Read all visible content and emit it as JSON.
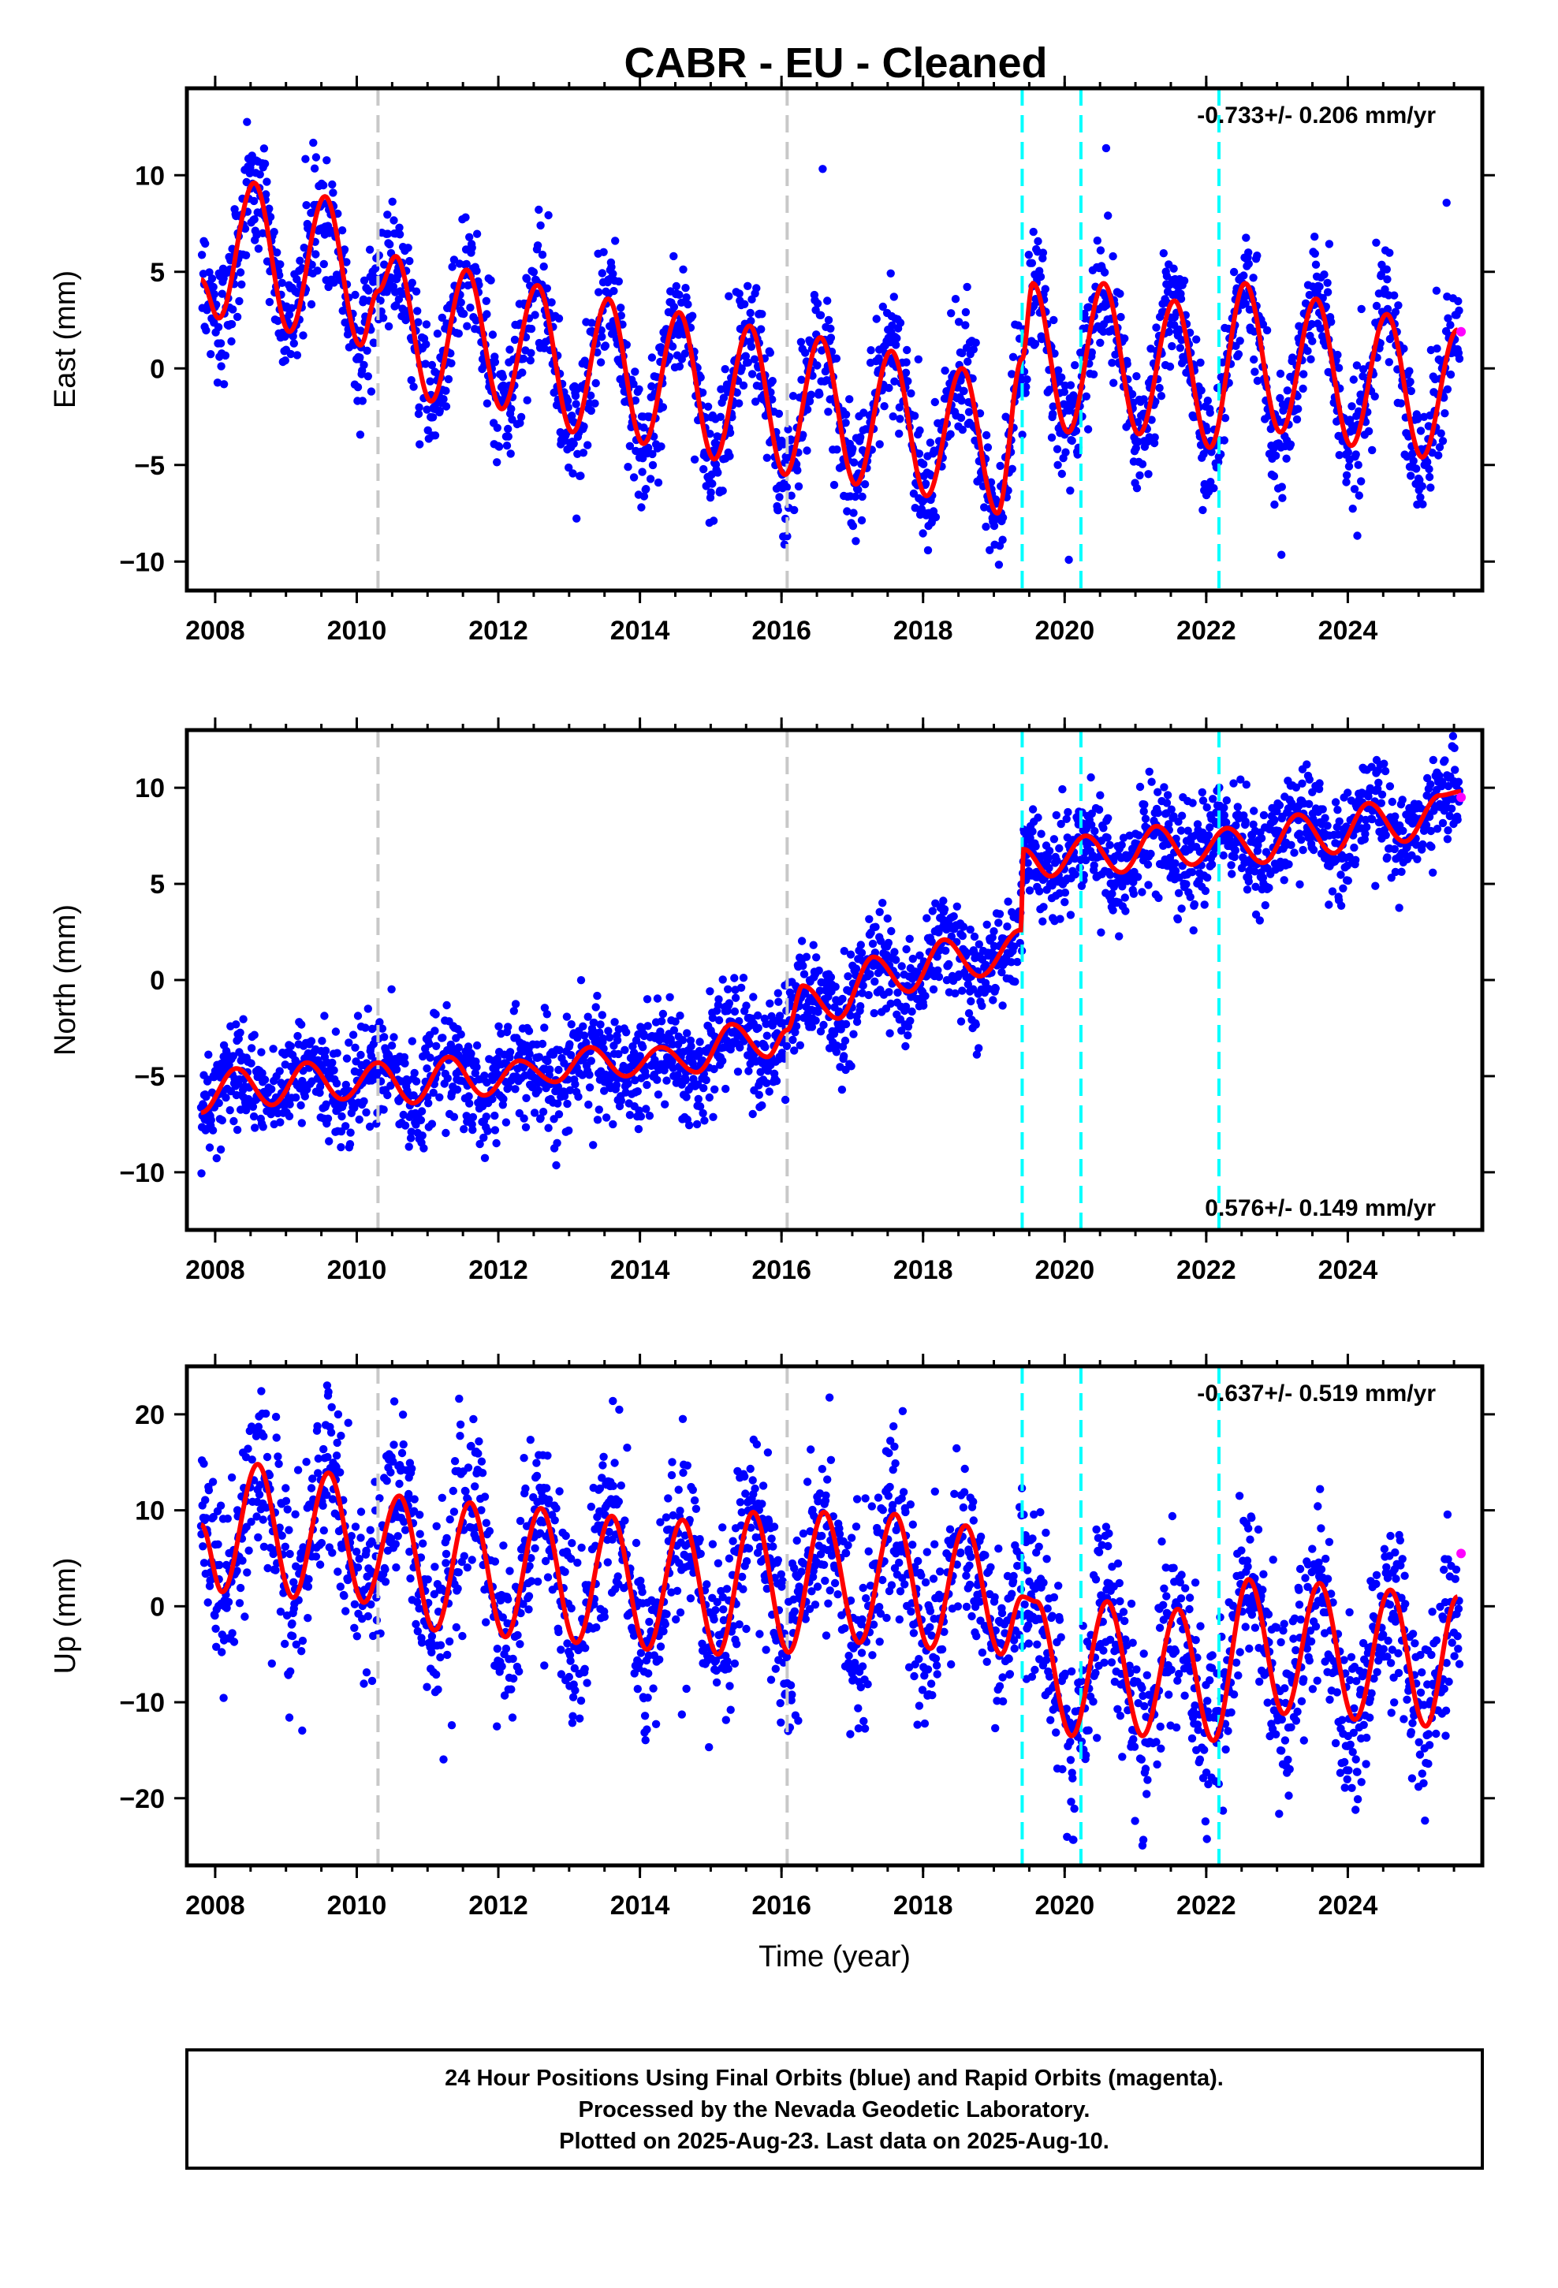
{
  "title": "CABR  - EU - Cleaned",
  "footer": {
    "line1": "24 Hour Positions Using Final Orbits (blue) and Rapid Orbits (magenta).",
    "line2": "Processed by the Nevada Geodetic Laboratory.",
    "line3": "Plotted on 2025-Aug-23. Last data on 2025-Aug-10."
  },
  "colors": {
    "final_orbits": "#0000ff",
    "rapid_orbits": "#ff00ff",
    "model_fit": "#ff0000",
    "equipment_change": "#c8c8c8",
    "earthquake": "#00ffff"
  },
  "chart_data": [
    {
      "type": "scatter",
      "panel": "east",
      "ylabel": "East (mm)",
      "xlabel": "",
      "xlim": [
        2007.6,
        2025.9
      ],
      "ylim": [
        -11.5,
        14.5
      ],
      "xticks": [
        2008,
        2010,
        2012,
        2014,
        2016,
        2018,
        2020,
        2022,
        2024
      ],
      "xtick_labels": [
        "2008",
        "2010",
        "2012",
        "2014",
        "2016",
        "2018",
        "2020",
        "2022",
        "2024"
      ],
      "yticks": [
        -10,
        -5,
        0,
        5,
        10
      ],
      "ytick_labels": [
        "−10",
        "−5",
        "0",
        "5",
        "10"
      ],
      "rate_text": "-0.733+/- 0.206 mm/yr",
      "rate_position": "top-right",
      "vlines_gray": [
        2010.3,
        2016.08
      ],
      "vlines_cyan": [
        2019.4,
        2020.23,
        2022.18
      ],
      "model_fit": {
        "description_points": "seasonal sinusoid on a slow trend",
        "x": [
          2007.8,
          2008.05,
          2008.55,
          2009.05,
          2009.55,
          2010.05,
          2010.3,
          2010.55,
          2011.05,
          2011.55,
          2012.05,
          2012.55,
          2013.05,
          2013.55,
          2014.05,
          2014.55,
          2015.05,
          2015.55,
          2016.05,
          2016.55,
          2017.05,
          2017.55,
          2018.05,
          2018.55,
          2019.05,
          2019.4,
          2019.55,
          2020.05,
          2020.55,
          2021.05,
          2021.55,
          2022.05,
          2022.55,
          2023.05,
          2023.55,
          2024.05,
          2024.55,
          2025.05,
          2025.55
        ],
        "y": [
          4.6,
          2.6,
          9.6,
          1.9,
          8.9,
          1.2,
          4.0,
          5.8,
          -1.7,
          5.1,
          -2.1,
          4.3,
          -3.3,
          3.6,
          -3.9,
          2.9,
          -4.7,
          2.2,
          -5.5,
          1.6,
          -6.0,
          0.9,
          -6.6,
          0.0,
          -7.5,
          0.5,
          4.4,
          -3.3,
          4.4,
          -3.4,
          3.5,
          -4.1,
          4.4,
          -3.3,
          3.6,
          -4.0,
          2.8,
          -4.6,
          2.0
        ]
      },
      "scatter_noise_mm": 1.6,
      "rapid_last": {
        "x": 2025.6,
        "y": 1.9
      }
    },
    {
      "type": "scatter",
      "panel": "north",
      "ylabel": "North (mm)",
      "xlabel": "",
      "xlim": [
        2007.6,
        2025.9
      ],
      "ylim": [
        -13,
        13
      ],
      "xticks": [
        2008,
        2010,
        2012,
        2014,
        2016,
        2018,
        2020,
        2022,
        2024
      ],
      "xtick_labels": [
        "2008",
        "2010",
        "2012",
        "2014",
        "2016",
        "2018",
        "2020",
        "2022",
        "2024"
      ],
      "yticks": [
        -10,
        -5,
        0,
        5,
        10
      ],
      "ytick_labels": [
        "−10",
        "−5",
        "0",
        "5",
        "10"
      ],
      "rate_text": "0.576+/- 0.149 mm/yr",
      "rate_position": "bottom-right",
      "vlines_gray": [
        2010.3,
        2016.08
      ],
      "vlines_cyan": [
        2019.4,
        2020.23,
        2022.18
      ],
      "model_fit": {
        "description_points": "piecewise trend with steps and seasonal signal",
        "x": [
          2007.8,
          2008.3,
          2008.8,
          2009.3,
          2009.8,
          2010.3,
          2010.8,
          2011.3,
          2011.8,
          2012.3,
          2012.8,
          2013.3,
          2013.8,
          2014.3,
          2014.8,
          2015.3,
          2015.8,
          2016.08,
          2016.3,
          2016.8,
          2017.3,
          2017.8,
          2018.3,
          2018.8,
          2019.38,
          2019.42,
          2019.8,
          2020.3,
          2020.8,
          2021.3,
          2021.8,
          2022.3,
          2022.8,
          2023.3,
          2023.8,
          2024.3,
          2024.8,
          2025.3,
          2025.6
        ],
        "y": [
          -6.9,
          -4.6,
          -6.5,
          -4.3,
          -6.2,
          -4.3,
          -6.4,
          -4.0,
          -6.0,
          -4.2,
          -5.3,
          -3.5,
          -5.0,
          -3.5,
          -4.8,
          -2.3,
          -4.0,
          -2.6,
          -0.3,
          -2.0,
          1.2,
          -0.6,
          2.1,
          0.2,
          2.6,
          6.8,
          5.4,
          7.5,
          5.6,
          8.0,
          6.0,
          7.9,
          6.1,
          8.6,
          6.6,
          9.2,
          7.2,
          9.6,
          9.8
        ]
      },
      "scatter_noise_mm": 1.3,
      "rapid_last": {
        "x": 2025.6,
        "y": 9.5
      }
    },
    {
      "type": "scatter",
      "panel": "up",
      "ylabel": "Up (mm)",
      "xlabel": "Time (year)",
      "xlim": [
        2007.6,
        2025.9
      ],
      "ylim": [
        -27,
        25
      ],
      "xticks": [
        2008,
        2010,
        2012,
        2014,
        2016,
        2018,
        2020,
        2022,
        2024
      ],
      "xtick_labels": [
        "2008",
        "2010",
        "2012",
        "2014",
        "2016",
        "2018",
        "2020",
        "2022",
        "2024"
      ],
      "yticks": [
        -20,
        -10,
        0,
        10,
        20
      ],
      "ytick_labels": [
        "−20",
        "−10",
        "0",
        "10",
        "20"
      ],
      "rate_text": "-0.637+/- 0.519 mm/yr",
      "rate_position": "top-right",
      "vlines_gray": [
        2010.3,
        2016.08
      ],
      "vlines_cyan": [
        2019.4,
        2020.23,
        2022.18
      ],
      "model_fit": {
        "description_points": "seasonal sinusoid with a negative offset after 2019",
        "x": [
          2007.8,
          2008.1,
          2008.6,
          2009.1,
          2009.6,
          2010.1,
          2010.6,
          2011.1,
          2011.6,
          2012.1,
          2012.6,
          2013.1,
          2013.6,
          2014.1,
          2014.6,
          2015.1,
          2015.6,
          2016.1,
          2016.6,
          2017.1,
          2017.6,
          2018.1,
          2018.6,
          2019.1,
          2019.4,
          2019.6,
          2020.1,
          2020.6,
          2021.1,
          2021.6,
          2022.1,
          2022.6,
          2023.1,
          2023.6,
          2024.1,
          2024.6,
          2025.1,
          2025.55
        ],
        "y": [
          8.5,
          1.5,
          14.8,
          0.9,
          13.9,
          0.4,
          11.5,
          -2.5,
          10.8,
          -3.2,
          10.2,
          -3.8,
          9.4,
          -4.5,
          9.0,
          -5.0,
          9.8,
          -4.8,
          9.8,
          -3.8,
          9.6,
          -4.4,
          8.4,
          -5.0,
          1.0,
          0.5,
          -13.5,
          0.5,
          -13.5,
          -0.3,
          -14.0,
          2.8,
          -11.2,
          2.4,
          -11.8,
          1.7,
          -12.5,
          1.0
        ]
      },
      "scatter_noise_mm": 4.5,
      "rapid_last": {
        "x": 2025.6,
        "y": 5.5
      }
    }
  ]
}
